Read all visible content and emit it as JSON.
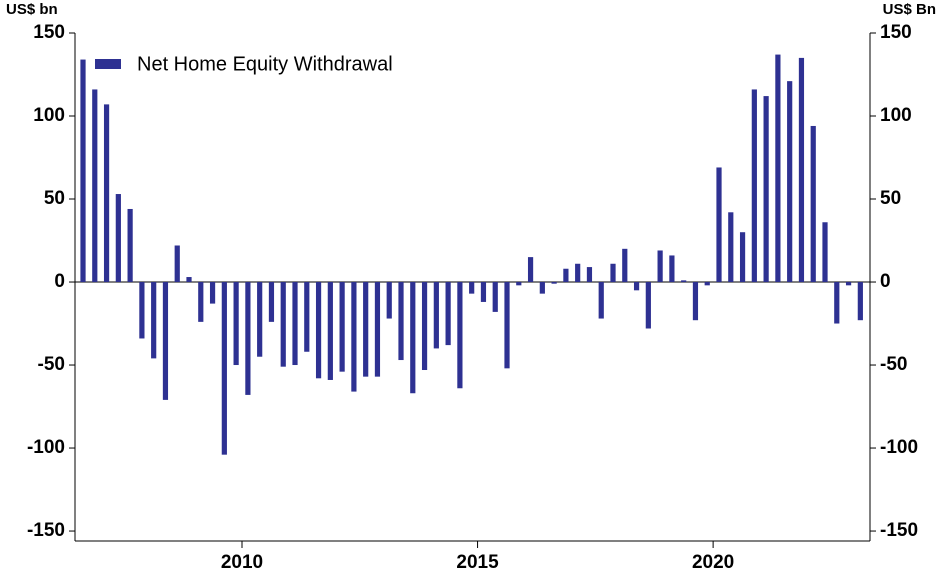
{
  "chart_data": {
    "type": "bar",
    "y_label": "US$ bn",
    "y2_label": "US$ Bn",
    "xlim": [
      2006.455,
      2023.33
    ],
    "xticks": [
      2010,
      2015,
      2020
    ],
    "ylim": [
      -156,
      150
    ],
    "yticks": [
      -150,
      -100,
      -50,
      0,
      50,
      100,
      150
    ],
    "legend": "upper left",
    "series": [
      {
        "name": "Net Home Equity Withdrawal",
        "color": "#2e3192",
        "x": [
          2006.625,
          2006.875,
          2007.125,
          2007.375,
          2007.625,
          2007.875,
          2008.125,
          2008.375,
          2008.625,
          2008.875,
          2009.125,
          2009.375,
          2009.625,
          2009.875,
          2010.125,
          2010.375,
          2010.625,
          2010.875,
          2011.125,
          2011.375,
          2011.625,
          2011.875,
          2012.125,
          2012.375,
          2012.625,
          2012.875,
          2013.125,
          2013.375,
          2013.625,
          2013.875,
          2014.125,
          2014.375,
          2014.625,
          2014.875,
          2015.125,
          2015.375,
          2015.625,
          2015.875,
          2016.125,
          2016.375,
          2016.625,
          2016.875,
          2017.125,
          2017.375,
          2017.625,
          2017.875,
          2018.125,
          2018.375,
          2018.625,
          2018.875,
          2019.125,
          2019.375,
          2019.625,
          2019.875,
          2020.125,
          2020.375,
          2020.625,
          2020.875,
          2021.125,
          2021.375,
          2021.625,
          2021.875,
          2022.125,
          2022.375,
          2022.625,
          2022.875,
          2023.125
        ],
        "values": [
          134,
          116,
          107,
          53,
          44,
          -34,
          -46,
          -71,
          22,
          3,
          -24,
          -13,
          -104,
          -50,
          -68,
          -45,
          -24,
          -51,
          -50,
          -42,
          -58,
          -59,
          -54,
          -66,
          -57,
          -57,
          -22,
          -47,
          -67,
          -53,
          -40,
          -38,
          -64,
          -7,
          -12,
          -18,
          -52,
          -2,
          15,
          -7,
          -1,
          8,
          11,
          9,
          -22,
          11,
          20,
          -5,
          -28,
          19,
          16,
          1,
          -23,
          -2,
          69,
          42,
          30,
          116,
          112,
          137,
          121,
          135,
          94,
          36,
          -25,
          -2,
          -23
        ]
      }
    ]
  }
}
